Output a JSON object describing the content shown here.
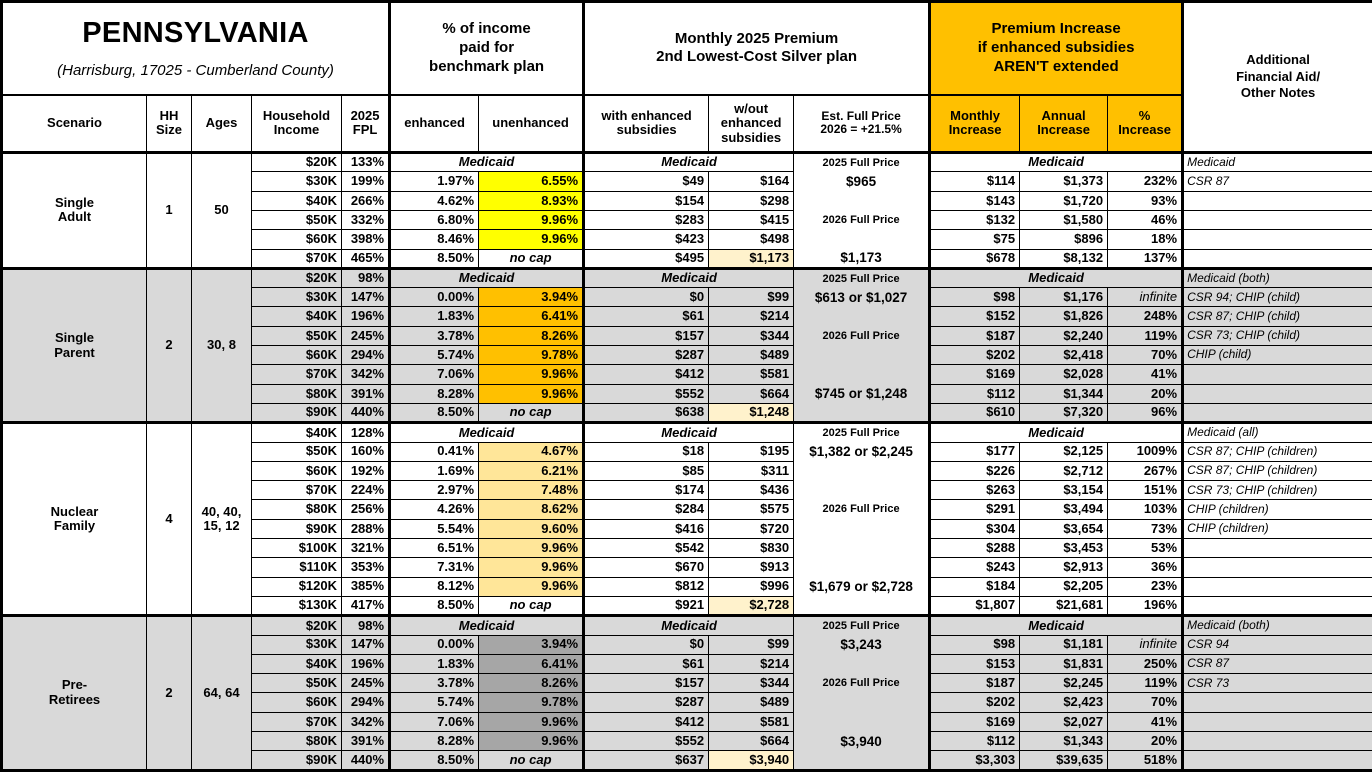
{
  "header": {
    "title": "PENNSYLVANIA",
    "subtitle": "(Harrisburg, 17025 - Cumberland County)",
    "groups": {
      "pct_income": "% of income\npaid for\nbenchmark plan",
      "premium": "Monthly 2025 Premium\n2nd Lowest-Cost Silver plan",
      "increase": "Premium Increase\nif enhanced subsidies\nAREN'T extended",
      "notes": "Additional\nFinancial Aid/\nOther Notes"
    },
    "columns": {
      "scenario": "Scenario",
      "hh_size": "HH\nSize",
      "ages": "Ages",
      "income": "Household\nIncome",
      "fpl": "2025\nFPL",
      "enhanced": "enhanced",
      "unenhanced": "unenhanced",
      "with_sub": "with enhanced\nsubsidies",
      "wout_sub": "w/out\nenhanced\nsubsidies",
      "full_price": "Est. Full Price\n2026 = +21.5%",
      "monthly": "Monthly\nIncrease",
      "annual": "Annual\nIncrease",
      "pct": "%\nIncrease"
    }
  },
  "labels": {
    "medicaid": "Medicaid",
    "no_cap": "no cap",
    "infinite": "infinite"
  },
  "colors": {
    "accent_orange": "#FFC000",
    "band_white": "#FFFFFF",
    "band_gray": "#D9D9D9",
    "highlight_yellow": "#FFFF00",
    "highlight_orange": "#FFC000",
    "highlight_light_gold": "#FFE699",
    "highlight_dark_gray": "#A6A6A6",
    "pale_yellow": "#FFF2CC"
  },
  "sections": [
    {
      "scenario": "Single\nAdult",
      "hh_size": "1",
      "ages": "50",
      "band": "white",
      "unenhanced_color": "#FFFF00",
      "rows": [
        {
          "type": "medicaid",
          "income": "$20K",
          "fpl": "133%",
          "full_price": "2025 Full Price",
          "note": "Medicaid"
        },
        {
          "type": "data",
          "income": "$30K",
          "fpl": "199%",
          "enhanced": "1.97%",
          "unenhanced": "6.55%",
          "with_sub": "$49",
          "wout_sub": "$164",
          "full_price": "$965",
          "monthly": "$114",
          "annual": "$1,373",
          "pct": "232%",
          "note": "CSR 87"
        },
        {
          "type": "data",
          "income": "$40K",
          "fpl": "266%",
          "enhanced": "4.62%",
          "unenhanced": "8.93%",
          "with_sub": "$154",
          "wout_sub": "$298",
          "full_price": "",
          "monthly": "$143",
          "annual": "$1,720",
          "pct": "93%",
          "note": ""
        },
        {
          "type": "data",
          "income": "$50K",
          "fpl": "332%",
          "enhanced": "6.80%",
          "unenhanced": "9.96%",
          "with_sub": "$283",
          "wout_sub": "$415",
          "full_price": "2026 Full Price",
          "monthly": "$132",
          "annual": "$1,580",
          "pct": "46%",
          "note": ""
        },
        {
          "type": "data",
          "income": "$60K",
          "fpl": "398%",
          "enhanced": "8.46%",
          "unenhanced": "9.96%",
          "with_sub": "$423",
          "wout_sub": "$498",
          "full_price": "",
          "monthly": "$75",
          "annual": "$896",
          "pct": "18%",
          "note": ""
        },
        {
          "type": "data",
          "income": "$70K",
          "fpl": "465%",
          "enhanced": "8.50%",
          "unenhanced": "no cap",
          "no_cap": true,
          "with_sub": "$495",
          "wout_sub": "$1,173",
          "wout_highlight": true,
          "full_price": "$1,173",
          "monthly": "$678",
          "annual": "$8,132",
          "pct": "137%",
          "note": ""
        }
      ]
    },
    {
      "scenario": "Single\nParent",
      "hh_size": "2",
      "ages": "30, 8",
      "band": "gray",
      "unenhanced_color": "#FFC000",
      "rows": [
        {
          "type": "medicaid",
          "income": "$20K",
          "fpl": "98%",
          "full_price": "2025 Full Price",
          "note": "Medicaid (both)"
        },
        {
          "type": "data",
          "income": "$30K",
          "fpl": "147%",
          "enhanced": "0.00%",
          "unenhanced": "3.94%",
          "with_sub": "$0",
          "wout_sub": "$99",
          "full_price": "$613 or $1,027",
          "monthly": "$98",
          "annual": "$1,176",
          "pct": "infinite",
          "note": "CSR 94; CHIP (child)"
        },
        {
          "type": "data",
          "income": "$40K",
          "fpl": "196%",
          "enhanced": "1.83%",
          "unenhanced": "6.41%",
          "with_sub": "$61",
          "wout_sub": "$214",
          "full_price": "",
          "monthly": "$152",
          "annual": "$1,826",
          "pct": "248%",
          "note": "CSR 87; CHIP (child)"
        },
        {
          "type": "data",
          "income": "$50K",
          "fpl": "245%",
          "enhanced": "3.78%",
          "unenhanced": "8.26%",
          "with_sub": "$157",
          "wout_sub": "$344",
          "full_price": "2026 Full Price",
          "monthly": "$187",
          "annual": "$2,240",
          "pct": "119%",
          "note": "CSR 73; CHIP (child)"
        },
        {
          "type": "data",
          "income": "$60K",
          "fpl": "294%",
          "enhanced": "5.74%",
          "unenhanced": "9.78%",
          "with_sub": "$287",
          "wout_sub": "$489",
          "full_price": "",
          "monthly": "$202",
          "annual": "$2,418",
          "pct": "70%",
          "note": "CHIP (child)"
        },
        {
          "type": "data",
          "income": "$70K",
          "fpl": "342%",
          "enhanced": "7.06%",
          "unenhanced": "9.96%",
          "with_sub": "$412",
          "wout_sub": "$581",
          "full_price": "",
          "monthly": "$169",
          "annual": "$2,028",
          "pct": "41%",
          "note": ""
        },
        {
          "type": "data",
          "income": "$80K",
          "fpl": "391%",
          "enhanced": "8.28%",
          "unenhanced": "9.96%",
          "with_sub": "$552",
          "wout_sub": "$664",
          "full_price": "$745 or $1,248",
          "monthly": "$112",
          "annual": "$1,344",
          "pct": "20%",
          "note": ""
        },
        {
          "type": "data",
          "income": "$90K",
          "fpl": "440%",
          "enhanced": "8.50%",
          "unenhanced": "no cap",
          "no_cap": true,
          "with_sub": "$638",
          "wout_sub": "$1,248",
          "wout_highlight": true,
          "full_price": "",
          "monthly": "$610",
          "annual": "$7,320",
          "pct": "96%",
          "note": ""
        }
      ]
    },
    {
      "scenario": "Nuclear\nFamily",
      "hh_size": "4",
      "ages": "40, 40,\n15, 12",
      "band": "white",
      "unenhanced_color": "#FFE699",
      "rows": [
        {
          "type": "medicaid",
          "income": "$40K",
          "fpl": "128%",
          "full_price": "2025 Full Price",
          "note": "Medicaid (all)"
        },
        {
          "type": "data",
          "income": "$50K",
          "fpl": "160%",
          "enhanced": "0.41%",
          "unenhanced": "4.67%",
          "with_sub": "$18",
          "wout_sub": "$195",
          "full_price": "$1,382 or $2,245",
          "monthly": "$177",
          "annual": "$2,125",
          "pct": "1009%",
          "note": "CSR 87; CHIP (children)"
        },
        {
          "type": "data",
          "income": "$60K",
          "fpl": "192%",
          "enhanced": "1.69%",
          "unenhanced": "6.21%",
          "with_sub": "$85",
          "wout_sub": "$311",
          "full_price": "",
          "monthly": "$226",
          "annual": "$2,712",
          "pct": "267%",
          "note": "CSR 87; CHIP (children)"
        },
        {
          "type": "data",
          "income": "$70K",
          "fpl": "224%",
          "enhanced": "2.97%",
          "unenhanced": "7.48%",
          "with_sub": "$174",
          "wout_sub": "$436",
          "full_price": "",
          "monthly": "$263",
          "annual": "$3,154",
          "pct": "151%",
          "note": "CSR 73; CHIP (children)"
        },
        {
          "type": "data",
          "income": "$80K",
          "fpl": "256%",
          "enhanced": "4.26%",
          "unenhanced": "8.62%",
          "with_sub": "$284",
          "wout_sub": "$575",
          "full_price": "2026 Full Price",
          "monthly": "$291",
          "annual": "$3,494",
          "pct": "103%",
          "note": "CHIP (children)"
        },
        {
          "type": "data",
          "income": "$90K",
          "fpl": "288%",
          "enhanced": "5.54%",
          "unenhanced": "9.60%",
          "with_sub": "$416",
          "wout_sub": "$720",
          "full_price": "",
          "monthly": "$304",
          "annual": "$3,654",
          "pct": "73%",
          "note": "CHIP (children)"
        },
        {
          "type": "data",
          "income": "$100K",
          "fpl": "321%",
          "enhanced": "6.51%",
          "unenhanced": "9.96%",
          "with_sub": "$542",
          "wout_sub": "$830",
          "full_price": "",
          "monthly": "$288",
          "annual": "$3,453",
          "pct": "53%",
          "note": ""
        },
        {
          "type": "data",
          "income": "$110K",
          "fpl": "353%",
          "enhanced": "7.31%",
          "unenhanced": "9.96%",
          "with_sub": "$670",
          "wout_sub": "$913",
          "full_price": "",
          "monthly": "$243",
          "annual": "$2,913",
          "pct": "36%",
          "note": ""
        },
        {
          "type": "data",
          "income": "$120K",
          "fpl": "385%",
          "enhanced": "8.12%",
          "unenhanced": "9.96%",
          "with_sub": "$812",
          "wout_sub": "$996",
          "full_price": "$1,679 or $2,728",
          "monthly": "$184",
          "annual": "$2,205",
          "pct": "23%",
          "note": ""
        },
        {
          "type": "data",
          "income": "$130K",
          "fpl": "417%",
          "enhanced": "8.50%",
          "unenhanced": "no cap",
          "no_cap": true,
          "with_sub": "$921",
          "wout_sub": "$2,728",
          "wout_highlight": true,
          "full_price": "",
          "monthly": "$1,807",
          "annual": "$21,681",
          "pct": "196%",
          "note": ""
        }
      ]
    },
    {
      "scenario": "Pre-\nRetirees",
      "hh_size": "2",
      "ages": "64, 64",
      "band": "gray",
      "unenhanced_color": "#A6A6A6",
      "rows": [
        {
          "type": "medicaid",
          "income": "$20K",
          "fpl": "98%",
          "full_price": "2025 Full Price",
          "note": "Medicaid (both)"
        },
        {
          "type": "data",
          "income": "$30K",
          "fpl": "147%",
          "enhanced": "0.00%",
          "unenhanced": "3.94%",
          "with_sub": "$0",
          "wout_sub": "$99",
          "full_price": "$3,243",
          "monthly": "$98",
          "annual": "$1,181",
          "pct": "infinite",
          "note": "CSR 94"
        },
        {
          "type": "data",
          "income": "$40K",
          "fpl": "196%",
          "enhanced": "1.83%",
          "unenhanced": "6.41%",
          "with_sub": "$61",
          "wout_sub": "$214",
          "full_price": "",
          "monthly": "$153",
          "annual": "$1,831",
          "pct": "250%",
          "note": "CSR 87"
        },
        {
          "type": "data",
          "income": "$50K",
          "fpl": "245%",
          "enhanced": "3.78%",
          "unenhanced": "8.26%",
          "with_sub": "$157",
          "wout_sub": "$344",
          "full_price": "2026 Full Price",
          "monthly": "$187",
          "annual": "$2,245",
          "pct": "119%",
          "note": "CSR 73"
        },
        {
          "type": "data",
          "income": "$60K",
          "fpl": "294%",
          "enhanced": "5.74%",
          "unenhanced": "9.78%",
          "with_sub": "$287",
          "wout_sub": "$489",
          "full_price": "",
          "monthly": "$202",
          "annual": "$2,423",
          "pct": "70%",
          "note": ""
        },
        {
          "type": "data",
          "income": "$70K",
          "fpl": "342%",
          "enhanced": "7.06%",
          "unenhanced": "9.96%",
          "with_sub": "$412",
          "wout_sub": "$581",
          "full_price": "",
          "monthly": "$169",
          "annual": "$2,027",
          "pct": "41%",
          "note": ""
        },
        {
          "type": "data",
          "income": "$80K",
          "fpl": "391%",
          "enhanced": "8.28%",
          "unenhanced": "9.96%",
          "with_sub": "$552",
          "wout_sub": "$664",
          "full_price": "$3,940",
          "monthly": "$112",
          "annual": "$1,343",
          "pct": "20%",
          "note": ""
        },
        {
          "type": "data",
          "income": "$90K",
          "fpl": "440%",
          "enhanced": "8.50%",
          "unenhanced": "no cap",
          "no_cap": true,
          "with_sub": "$637",
          "wout_sub": "$3,940",
          "wout_highlight": true,
          "full_price": "",
          "monthly": "$3,303",
          "annual": "$39,635",
          "pct": "518%",
          "note": ""
        }
      ]
    }
  ]
}
